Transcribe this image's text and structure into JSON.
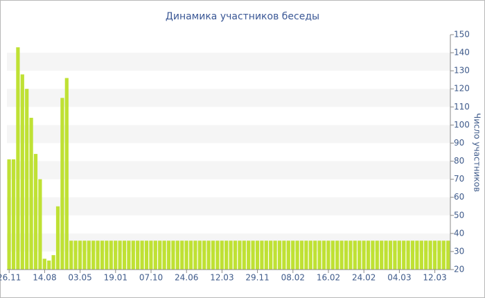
{
  "chart_data": {
    "type": "bar",
    "title": "Динамика участников беседы",
    "y_label": "Число участников",
    "categories": [
      "26.11",
      null,
      null,
      null,
      null,
      null,
      null,
      null,
      "14.08",
      null,
      null,
      null,
      null,
      null,
      null,
      null,
      "03.05",
      null,
      null,
      null,
      null,
      null,
      null,
      null,
      "19.01",
      null,
      null,
      null,
      null,
      null,
      null,
      null,
      "07.10",
      null,
      null,
      null,
      null,
      null,
      null,
      null,
      "24.06",
      null,
      null,
      null,
      null,
      null,
      null,
      null,
      "12.03",
      null,
      null,
      null,
      null,
      null,
      null,
      null,
      "29.11",
      null,
      null,
      null,
      null,
      null,
      null,
      null,
      "08.02",
      null,
      null,
      null,
      null,
      null,
      null,
      null,
      "16.02",
      null,
      null,
      null,
      null,
      null,
      null,
      null,
      "24.02",
      null,
      null,
      null,
      null,
      null,
      null,
      null,
      "04.03",
      null,
      null,
      null,
      null,
      null,
      null,
      null,
      "12.03",
      null,
      null,
      null
    ],
    "values": [
      81,
      81,
      143,
      128,
      120,
      104,
      84,
      70,
      26,
      25,
      28,
      55,
      115,
      126,
      36,
      36,
      36,
      36,
      36,
      36,
      36,
      36,
      36,
      36,
      36,
      36,
      36,
      36,
      36,
      36,
      36,
      36,
      36,
      36,
      36,
      36,
      36,
      36,
      36,
      36,
      36,
      36,
      36,
      36,
      36,
      36,
      36,
      36,
      36,
      36,
      36,
      36,
      36,
      36,
      36,
      36,
      36,
      36,
      36,
      36,
      36,
      36,
      36,
      36,
      36,
      36,
      36,
      36,
      36,
      36,
      36,
      36,
      36,
      36,
      36,
      36,
      36,
      36,
      36,
      36,
      36,
      36,
      36,
      36,
      36,
      36,
      36,
      36,
      36,
      36,
      36,
      36,
      36,
      36,
      36,
      36,
      36,
      36,
      36,
      36
    ],
    "color": "#bfe134",
    "ylim": [
      20,
      150
    ],
    "yticks": [
      20,
      30,
      40,
      50,
      60,
      70,
      80,
      90,
      100,
      110,
      120,
      130,
      140,
      150
    ],
    "grid": "bands"
  }
}
